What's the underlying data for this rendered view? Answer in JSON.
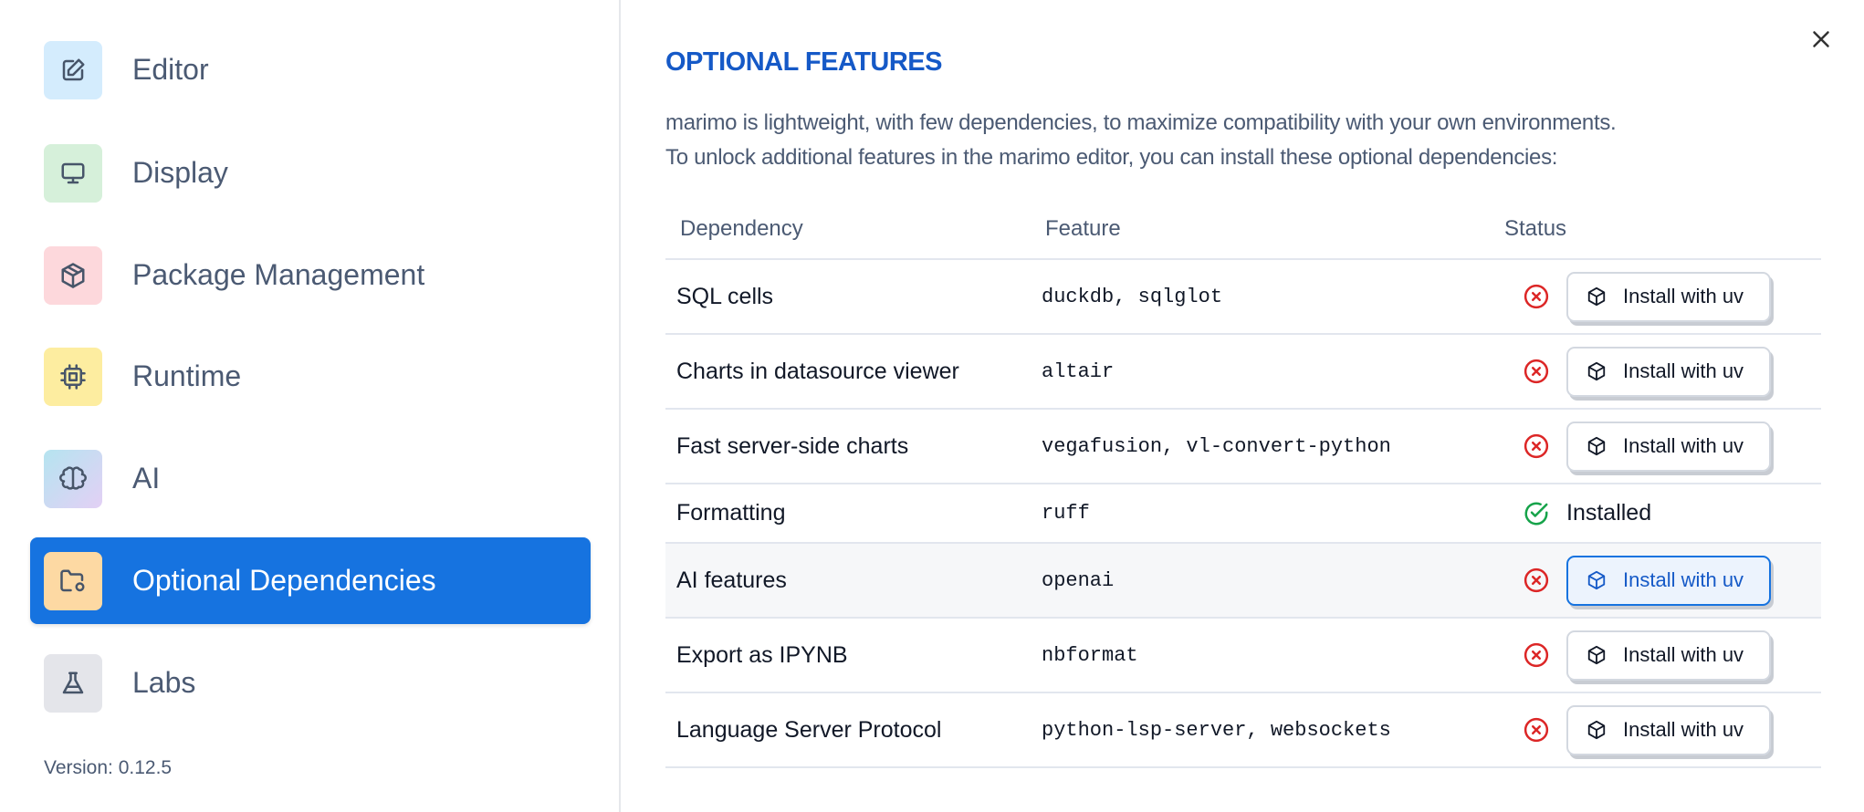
{
  "sidebar": {
    "items": [
      {
        "label": "Editor",
        "icon": "edit-icon",
        "bg": "#d4ecfd"
      },
      {
        "label": "Display",
        "icon": "monitor-icon",
        "bg": "#d6f0da"
      },
      {
        "label": "Package Management",
        "icon": "package-icon",
        "bg": "#fdd8dc"
      },
      {
        "label": "Runtime",
        "icon": "cpu-icon",
        "bg": "#fdeda0"
      },
      {
        "label": "AI",
        "icon": "brain-icon",
        "bg": "#c9d8ef"
      },
      {
        "label": "Optional Dependencies",
        "icon": "folder-cog-icon",
        "bg": "#fdd9a3",
        "active": true
      },
      {
        "label": "Labs",
        "icon": "flask-icon",
        "bg": "#e4e5ea"
      }
    ],
    "version": "Version: 0.12.5"
  },
  "main": {
    "title": "OPTIONAL FEATURES",
    "description_1": "marimo is lightweight, with few dependencies, to maximize compatibility with your own environments.",
    "description_2": "To unlock additional features in the marimo editor, you can install these optional dependencies:",
    "columns": [
      "Dependency",
      "Feature",
      "Status"
    ],
    "rows": [
      {
        "dependency": "SQL cells",
        "feature": "duckdb, sqlglot",
        "status": "missing",
        "action": "Install with uv"
      },
      {
        "dependency": "Charts in datasource viewer",
        "feature": "altair",
        "status": "missing",
        "action": "Install with uv"
      },
      {
        "dependency": "Fast server-side charts",
        "feature": "vegafusion, vl-convert-python",
        "status": "missing",
        "action": "Install with uv"
      },
      {
        "dependency": "Formatting",
        "feature": "ruff",
        "status": "installed",
        "action": "Installed"
      },
      {
        "dependency": "AI features",
        "feature": "openai",
        "status": "missing",
        "action": "Install with uv",
        "hovered": true
      },
      {
        "dependency": "Export as IPYNB",
        "feature": "nbformat",
        "status": "missing",
        "action": "Install with uv"
      },
      {
        "dependency": "Language Server Protocol",
        "feature": "python-lsp-server, websockets",
        "status": "missing",
        "action": "Install with uv"
      }
    ]
  },
  "colors": {
    "accent": "#1673e0",
    "title": "#1559c7",
    "error": "#dc2626",
    "success": "#16a34a"
  }
}
